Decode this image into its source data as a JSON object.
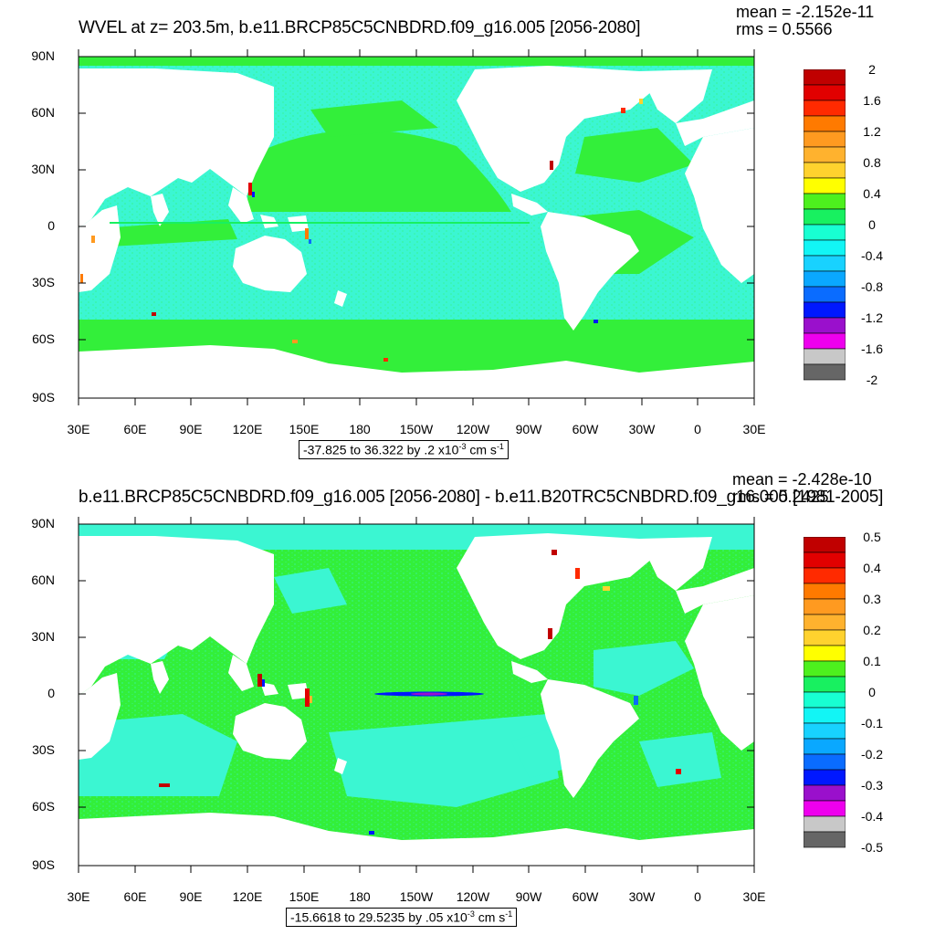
{
  "panels": [
    {
      "title": "WVEL at z= 203.5m, b.e11.BRCP85C5CNBDRD.f09_g16.005 [2056-2080]",
      "mean": "mean = -2.152e-11",
      "rms": "rms = 0.5566",
      "range_text": "-37.825 to 36.322 by .2 x10",
      "units_exp": "-3",
      "units_tail": " cm s",
      "units_tail_exp": "-1",
      "colorbar_labels": [
        "2",
        "1.6",
        "1.2",
        "0.8",
        "0.4",
        "0",
        "-0.4",
        "-0.8",
        "-1.2",
        "-1.6",
        "-2"
      ],
      "y_labels": [
        "90N",
        "60N",
        "30N",
        "0",
        "30S",
        "60S",
        "90S"
      ],
      "x_labels": [
        "30E",
        "60E",
        "90E",
        "120E",
        "150E",
        "180",
        "150W",
        "120W",
        "90W",
        "60W",
        "30W",
        "0",
        "30E"
      ]
    },
    {
      "title": "b.e11.BRCP85C5CNBDRD.f09_g16.005 [2056-2080] - b.e11.B20TRC5CNBDRD.f09_g16.005 [1981-2005]",
      "mean": "mean = -2.428e-10",
      "rms": "rms = 0.2425",
      "range_text": "-15.6618 to 29.5235 by .05 x10",
      "units_exp": "-3",
      "units_tail": " cm s",
      "units_tail_exp": "-1",
      "colorbar_labels": [
        "0.5",
        "0.4",
        "0.3",
        "0.2",
        "0.1",
        "0",
        "-0.1",
        "-0.2",
        "-0.3",
        "-0.4",
        "-0.5"
      ],
      "y_labels": [
        "90N",
        "60N",
        "30N",
        "0",
        "30S",
        "60S",
        "90S"
      ],
      "x_labels": [
        "30E",
        "60E",
        "90E",
        "120E",
        "150E",
        "180",
        "150W",
        "120W",
        "90W",
        "60W",
        "30W",
        "0",
        "30E"
      ]
    }
  ],
  "colors": {
    "palette": [
      "#666666",
      "#c8c8c8",
      "#ee00ee",
      "#9a10cc",
      "#0018ff",
      "#0a6cff",
      "#0aa8ff",
      "#18d2ff",
      "#12f5f5",
      "#18ffd2",
      "#18f060",
      "#4df01e",
      "#ffff00",
      "#ffd22e",
      "#ffb22e",
      "#ff9a20",
      "#ff7a00",
      "#ff2a00",
      "#e10000",
      "#c00000"
    ],
    "ocean_base": "#3bf6d2",
    "ocean_green": "#33ef3a",
    "land": "#ffffff"
  }
}
